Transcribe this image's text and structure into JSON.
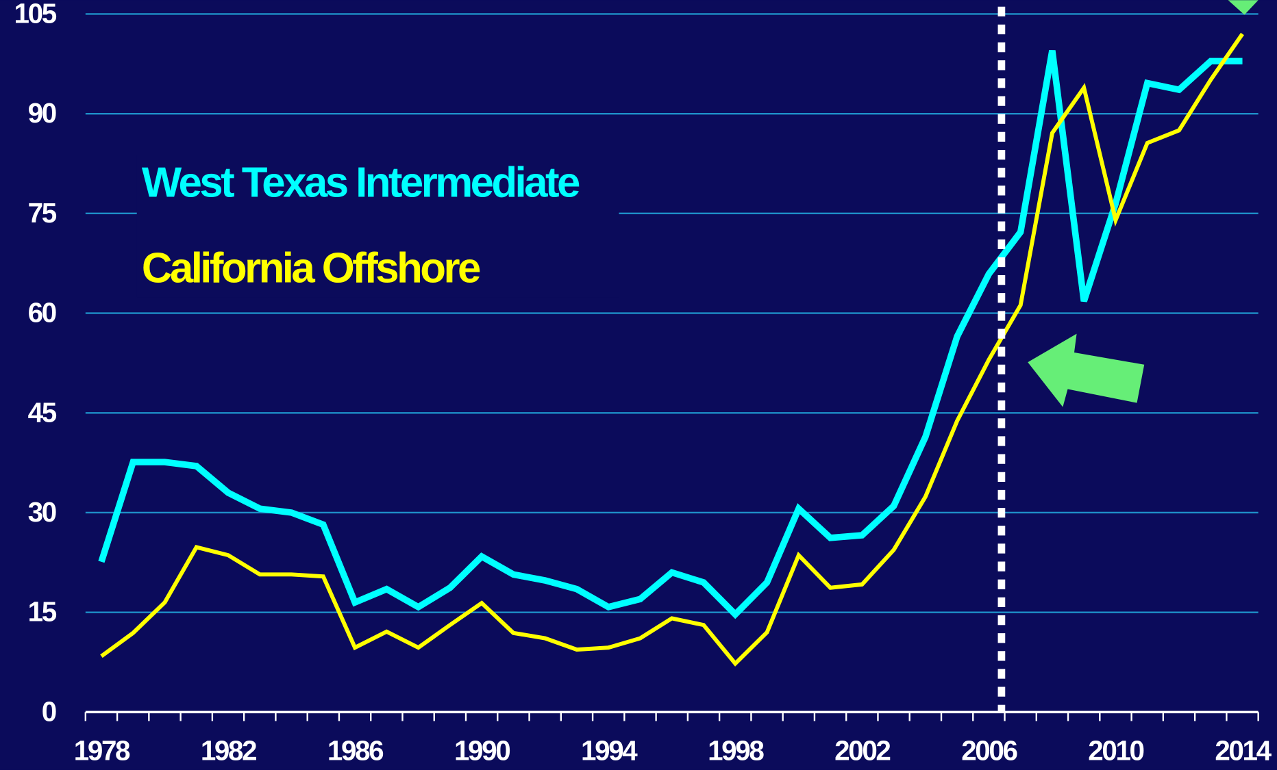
{
  "chart_data": {
    "type": "line",
    "x": [
      1978,
      1979,
      1980,
      1981,
      1982,
      1983,
      1984,
      1985,
      1986,
      1987,
      1988,
      1989,
      1990,
      1991,
      1992,
      1993,
      1994,
      1995,
      1996,
      1997,
      1998,
      1999,
      2000,
      2001,
      2002,
      2003,
      2004,
      2005,
      2006,
      2007,
      2008,
      2009,
      2010,
      2011,
      2012,
      2013,
      2014
    ],
    "series": [
      {
        "name": "West Texas Intermediate",
        "color": "#00ffff",
        "values": [
          22.6,
          37.6,
          37.6,
          37,
          33,
          30.6,
          30,
          28.2,
          16.5,
          18.5,
          15.8,
          18.7,
          23.4,
          20.7,
          19.8,
          18.5,
          15.8,
          17,
          21,
          19.5,
          14.7,
          19.5,
          30.6,
          26.2,
          26.6,
          31,
          41.4,
          56.5,
          65.9,
          72.2,
          99.5,
          61.8,
          76.5,
          94.6,
          93.6,
          97.9,
          97.9
        ]
      },
      {
        "name": "California Offshore",
        "color": "#ffff00",
        "values": [
          8.4,
          11.9,
          16.5,
          24.8,
          23.6,
          20.7,
          20.7,
          20.4,
          9.7,
          12.1,
          9.7,
          13.1,
          16.4,
          11.9,
          11.1,
          9.4,
          9.7,
          11.1,
          14.1,
          13.1,
          7.3,
          12,
          23.6,
          18.7,
          19.2,
          24.4,
          32.4,
          43.8,
          53,
          61.2,
          87.1,
          93.9,
          74,
          85.6,
          87.5,
          95.1,
          102
        ]
      }
    ],
    "xlim": [
      1977.5,
      2014.5
    ],
    "xticks": [
      1978,
      1982,
      1986,
      1990,
      1994,
      1998,
      2002,
      2006,
      2010,
      2014
    ],
    "ylim": [
      0,
      105
    ],
    "yticks": [
      0,
      15,
      30,
      45,
      60,
      75,
      90,
      105
    ],
    "grid": true,
    "vline_x": 2006.4
  }
}
